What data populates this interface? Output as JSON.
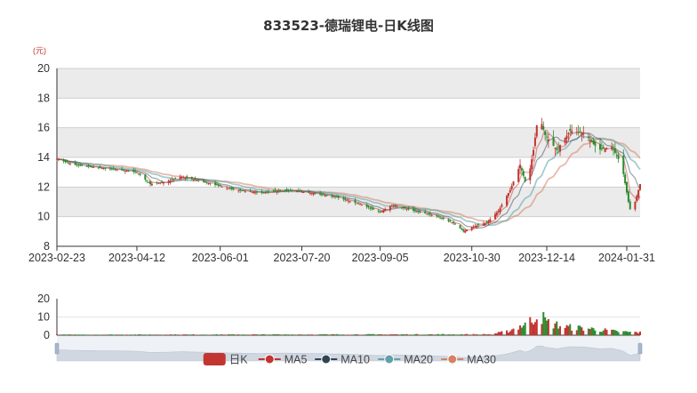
{
  "chart_data": {
    "type": "candlestick",
    "title": "833523-德瑞锂电-日K线图",
    "ylabel": "(元)",
    "colors": {
      "up": "#c23531",
      "down": "#2e8b2e",
      "ma5": "#c23531",
      "ma10": "#2f4554",
      "ma20": "#61a0a8",
      "ma30": "#d48265",
      "band": "#ebebeb",
      "grid": "#cfcfcf",
      "slider": "#d9dfe8"
    },
    "price_axis": {
      "min": 8,
      "max": 20,
      "ticks": [
        8,
        10,
        12,
        14,
        16,
        18,
        20
      ]
    },
    "volume_axis": {
      "min": 0,
      "max": 20,
      "ticks": [
        0,
        10,
        20
      ]
    },
    "x_axis": {
      "start": "2023-02-23",
      "end": "2024-02-08",
      "tick_labels": [
        "2023-02-23",
        "2023-04-12",
        "2023-06-01",
        "2023-07-20",
        "2023-09-05",
        "2023-10-30",
        "2023-12-14",
        "2024-01-31"
      ]
    },
    "legend": [
      {
        "name": "日K",
        "shape": "rect",
        "color": "#c23531"
      },
      {
        "name": "MA5",
        "shape": "circle",
        "color": "#c23531"
      },
      {
        "name": "MA10",
        "shape": "circle",
        "color": "#2f4554"
      },
      {
        "name": "MA20",
        "shape": "circle",
        "color": "#61a0a8"
      },
      {
        "name": "MA30",
        "shape": "circle",
        "color": "#d48265"
      }
    ],
    "close_anchors": [
      [
        "2023-02-23",
        13.9
      ],
      [
        "2023-03-05",
        13.5
      ],
      [
        "2023-03-20",
        13.3
      ],
      [
        "2023-04-05",
        13.1
      ],
      [
        "2023-04-12",
        13.0
      ],
      [
        "2023-04-20",
        12.2
      ],
      [
        "2023-05-01",
        12.4
      ],
      [
        "2023-05-08",
        12.7
      ],
      [
        "2023-05-20",
        12.4
      ],
      [
        "2023-06-10",
        11.8
      ],
      [
        "2023-06-25",
        11.6
      ],
      [
        "2023-07-10",
        11.8
      ],
      [
        "2023-07-25",
        11.6
      ],
      [
        "2023-08-10",
        11.3
      ],
      [
        "2023-08-25",
        10.8
      ],
      [
        "2023-09-05",
        10.3
      ],
      [
        "2023-09-12",
        10.8
      ],
      [
        "2023-09-25",
        10.4
      ],
      [
        "2023-10-10",
        10.0
      ],
      [
        "2023-10-20",
        9.5
      ],
      [
        "2023-10-25",
        9.0
      ],
      [
        "2023-10-30",
        9.3
      ],
      [
        "2023-11-08",
        9.6
      ],
      [
        "2023-11-15",
        10.4
      ],
      [
        "2023-11-22",
        11.8
      ],
      [
        "2023-11-28",
        13.5
      ],
      [
        "2023-12-02",
        12.0
      ],
      [
        "2023-12-06",
        14.5
      ],
      [
        "2023-12-09",
        17.0
      ],
      [
        "2023-12-13",
        15.5
      ],
      [
        "2023-12-20",
        14.5
      ],
      [
        "2023-12-28",
        15.8
      ],
      [
        "2024-01-06",
        15.6
      ],
      [
        "2024-01-14",
        14.5
      ],
      [
        "2024-01-22",
        14.7
      ],
      [
        "2024-01-28",
        13.5
      ],
      [
        "2024-02-01",
        11.0
      ],
      [
        "2024-02-03",
        10.0
      ],
      [
        "2024-02-05",
        11.0
      ],
      [
        "2024-02-08",
        12.2
      ]
    ],
    "volume_anchors": [
      [
        "2023-02-23",
        0.3
      ],
      [
        "2023-11-10",
        0.5
      ],
      [
        "2023-11-20",
        2.0
      ],
      [
        "2023-11-28",
        5.0
      ],
      [
        "2023-12-05",
        8.0
      ],
      [
        "2023-12-09",
        12.5
      ],
      [
        "2023-12-14",
        7.0
      ],
      [
        "2023-12-25",
        4.5
      ],
      [
        "2024-01-10",
        3.5
      ],
      [
        "2024-01-25",
        2.0
      ],
      [
        "2024-02-08",
        1.5
      ]
    ]
  }
}
